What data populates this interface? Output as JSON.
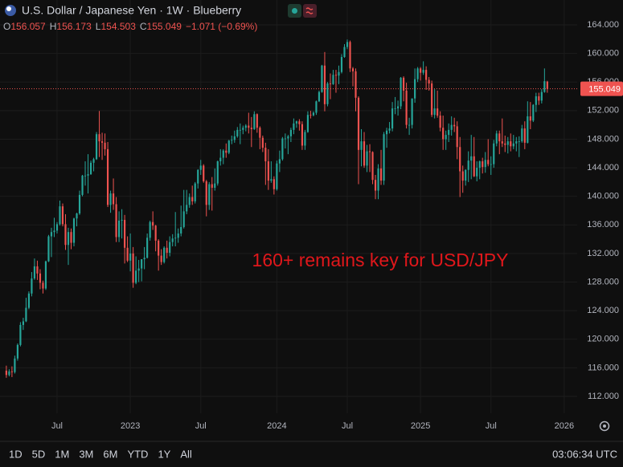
{
  "chart_data": {
    "type": "candlestick",
    "title": "U.S. Dollar / Japanese Yen · 1W · Blueberry",
    "legend_labels": [
      "O",
      "H",
      "L",
      "C"
    ],
    "legend_values": [
      "156.057",
      "156.173",
      "154.503",
      "155.049",
      "−1.071 (−0.69%)"
    ],
    "annotation": "160+ remains key for USD/JPY",
    "last_price": {
      "value": 155.049,
      "label": "155.049"
    },
    "up_color": "#26a69a",
    "down_color": "#ef5350",
    "annotation_color": "#e0171b",
    "grid": true,
    "ylim": [
      109.64,
      167.48
    ],
    "yticks": [
      {
        "value": 112,
        "label": "112.000"
      },
      {
        "value": 116,
        "label": "116.000"
      },
      {
        "value": 120,
        "label": "120.000"
      },
      {
        "value": 124,
        "label": "124.000"
      },
      {
        "value": 128,
        "label": "128.000"
      },
      {
        "value": 132,
        "label": "132.000"
      },
      {
        "value": 136,
        "label": "136.000"
      },
      {
        "value": 140,
        "label": "140.000"
      },
      {
        "value": 144,
        "label": "144.000"
      },
      {
        "value": 148,
        "label": "148.000"
      },
      {
        "value": 152,
        "label": "152.000"
      },
      {
        "value": 156,
        "label": "156.000"
      },
      {
        "value": 160,
        "label": "160.000"
      },
      {
        "value": 164,
        "label": "164.000"
      }
    ],
    "xlim": [
      -2.25,
      202.6
    ],
    "xticks": [
      {
        "value": 18,
        "label": "Jul"
      },
      {
        "value": 44,
        "label": "2023"
      },
      {
        "value": 69,
        "label": "Jul"
      },
      {
        "value": 96,
        "label": "2024"
      },
      {
        "value": 121,
        "label": "Jul"
      },
      {
        "value": 147,
        "label": "2025"
      },
      {
        "value": 172,
        "label": "Jul"
      },
      {
        "value": 198,
        "label": "2026"
      }
    ],
    "ohlc": [
      [
        115.6,
        116.3,
        114.6,
        115.0
      ],
      [
        115.0,
        115.8,
        114.8,
        115.5
      ],
      [
        115.5,
        116.2,
        114.7,
        115.4
      ],
      [
        115.4,
        117.7,
        115.2,
        117.3
      ],
      [
        117.3,
        119.4,
        117.0,
        119.2
      ],
      [
        119.2,
        122.4,
        119.0,
        122.0
      ],
      [
        122.0,
        123.0,
        121.3,
        122.5
      ],
      [
        122.5,
        125.8,
        122.4,
        124.4
      ],
      [
        124.4,
        126.7,
        124.2,
        126.4
      ],
      [
        126.4,
        129.4,
        126.0,
        128.5
      ],
      [
        128.5,
        131.3,
        128.3,
        130.2
      ],
      [
        130.2,
        131.0,
        128.3,
        129.2
      ],
      [
        129.2,
        129.8,
        127.0,
        127.9
      ],
      [
        127.9,
        128.2,
        126.4,
        127.1
      ],
      [
        127.1,
        131.0,
        126.9,
        130.9
      ],
      [
        130.9,
        134.6,
        130.8,
        134.4
      ],
      [
        134.4,
        135.6,
        131.5,
        135.0
      ],
      [
        135.0,
        137.0,
        134.3,
        135.2
      ],
      [
        135.2,
        136.4,
        134.8,
        136.1
      ],
      [
        136.1,
        139.4,
        135.9,
        138.6
      ],
      [
        138.6,
        139.0,
        135.8,
        136.1
      ],
      [
        136.1,
        137.5,
        132.5,
        133.2
      ],
      [
        133.2,
        135.6,
        130.4,
        135.0
      ],
      [
        135.0,
        135.5,
        132.6,
        133.5
      ],
      [
        133.5,
        137.0,
        133.0,
        136.9
      ],
      [
        136.9,
        137.7,
        135.8,
        137.6
      ],
      [
        137.6,
        140.8,
        137.4,
        140.2
      ],
      [
        140.2,
        143.0,
        140.0,
        142.9
      ],
      [
        142.9,
        144.9,
        141.5,
        142.9
      ],
      [
        142.9,
        145.9,
        140.4,
        143.1
      ],
      [
        143.1,
        145.0,
        143.0,
        144.7
      ],
      [
        144.7,
        145.4,
        143.5,
        145.2
      ],
      [
        145.2,
        149.0,
        145.1,
        148.7
      ],
      [
        148.7,
        151.95,
        145.5,
        147.7
      ],
      [
        147.7,
        148.9,
        145.1,
        147.5
      ],
      [
        147.5,
        148.8,
        145.7,
        146.6
      ],
      [
        146.6,
        147.6,
        138.5,
        138.8
      ],
      [
        138.8,
        140.8,
        137.7,
        140.4
      ],
      [
        140.4,
        142.5,
        138.1,
        138.9
      ],
      [
        138.9,
        139.9,
        133.6,
        134.3
      ],
      [
        134.3,
        137.9,
        133.6,
        136.6
      ],
      [
        136.6,
        138.2,
        134.1,
        136.7
      ],
      [
        136.7,
        137.4,
        130.6,
        132.8
      ],
      [
        132.8,
        134.4,
        130.8,
        131.0
      ],
      [
        131.0,
        134.8,
        129.5,
        132.0
      ],
      [
        132.0,
        132.9,
        127.2,
        127.9
      ],
      [
        127.9,
        131.6,
        127.7,
        129.6
      ],
      [
        129.6,
        131.1,
        128.0,
        129.9
      ],
      [
        129.9,
        131.2,
        128.1,
        131.2
      ],
      [
        131.2,
        132.9,
        129.8,
        131.4
      ],
      [
        131.4,
        134.8,
        131.3,
        134.2
      ],
      [
        134.2,
        136.6,
        133.8,
        136.4
      ],
      [
        136.4,
        137.9,
        135.3,
        135.9
      ],
      [
        135.9,
        136.0,
        132.3,
        133.8
      ],
      [
        133.8,
        134.0,
        129.6,
        131.7
      ],
      [
        131.7,
        132.6,
        130.4,
        130.8
      ],
      [
        130.8,
        133.0,
        130.6,
        132.8
      ],
      [
        132.8,
        133.8,
        131.3,
        132.1
      ],
      [
        132.1,
        134.4,
        131.6,
        133.6
      ],
      [
        133.6,
        134.7,
        133.0,
        134.1
      ],
      [
        134.1,
        137.8,
        133.0,
        134.2
      ],
      [
        134.2,
        135.5,
        133.5,
        134.8
      ],
      [
        134.8,
        138.7,
        134.4,
        135.7
      ],
      [
        135.7,
        140.9,
        135.5,
        137.9
      ],
      [
        137.9,
        140.9,
        137.5,
        138.8
      ],
      [
        138.8,
        140.4,
        138.4,
        139.9
      ],
      [
        139.9,
        141.5,
        138.8,
        139.3
      ],
      [
        139.3,
        142.0,
        139.0,
        141.8
      ],
      [
        141.8,
        143.8,
        141.1,
        143.7
      ],
      [
        143.7,
        145.1,
        143.0,
        144.3
      ],
      [
        144.3,
        144.5,
        141.9,
        142.1
      ],
      [
        142.1,
        142.3,
        137.2,
        138.8
      ],
      [
        138.8,
        142.0,
        138.1,
        141.7
      ],
      [
        141.7,
        142.7,
        138.0,
        141.2
      ],
      [
        141.2,
        143.9,
        140.8,
        141.8
      ],
      [
        141.8,
        145.0,
        141.5,
        144.9
      ],
      [
        144.9,
        146.6,
        144.3,
        145.4
      ],
      [
        145.4,
        146.6,
        144.5,
        146.4
      ],
      [
        146.4,
        147.4,
        145.4,
        146.1
      ],
      [
        146.1,
        147.9,
        145.9,
        147.8
      ],
      [
        147.8,
        148.5,
        147.3,
        147.9
      ],
      [
        147.9,
        149.2,
        147.5,
        148.4
      ],
      [
        148.4,
        149.7,
        148.2,
        149.3
      ],
      [
        149.3,
        150.2,
        147.3,
        149.3
      ],
      [
        149.3,
        149.9,
        148.7,
        149.6
      ],
      [
        149.6,
        150.1,
        149.1,
        149.9
      ],
      [
        149.9,
        151.7,
        148.8,
        149.6
      ],
      [
        149.6,
        151.1,
        146.9,
        149.4
      ],
      [
        149.4,
        151.9,
        149.3,
        151.5
      ],
      [
        151.5,
        151.6,
        148.9,
        149.6
      ],
      [
        149.6,
        149.8,
        146.6,
        148.2
      ],
      [
        148.2,
        148.5,
        146.2,
        146.8
      ],
      [
        146.8,
        147.5,
        141.6,
        144.9
      ],
      [
        144.9,
        146.6,
        140.9,
        142.2
      ],
      [
        142.2,
        144.9,
        141.9,
        142.4
      ],
      [
        142.4,
        142.8,
        140.25,
        141.0
      ],
      [
        141.0,
        145.0,
        140.8,
        144.6
      ],
      [
        144.6,
        146.4,
        143.4,
        145.2
      ],
      [
        145.2,
        148.3,
        145.0,
        148.1
      ],
      [
        148.1,
        148.8,
        146.7,
        148.1
      ],
      [
        148.1,
        148.6,
        145.9,
        148.4
      ],
      [
        148.4,
        149.6,
        147.6,
        149.3
      ],
      [
        149.3,
        150.9,
        148.7,
        150.2
      ],
      [
        150.2,
        150.6,
        149.6,
        150.5
      ],
      [
        150.5,
        150.8,
        149.2,
        150.1
      ],
      [
        150.1,
        150.5,
        146.5,
        147.1
      ],
      [
        147.1,
        149.3,
        146.5,
        149.0
      ],
      [
        149.0,
        151.9,
        148.9,
        151.4
      ],
      [
        151.4,
        151.97,
        150.9,
        151.35
      ],
      [
        151.35,
        151.9,
        151.2,
        151.7
      ],
      [
        151.7,
        153.4,
        151.4,
        153.3
      ],
      [
        153.3,
        154.8,
        153.2,
        154.6
      ],
      [
        154.6,
        158.4,
        154.5,
        158.3
      ],
      [
        158.3,
        160.2,
        151.9,
        152.9
      ],
      [
        152.9,
        156.0,
        152.6,
        155.8
      ],
      [
        155.8,
        157.2,
        153.6,
        155.7
      ],
      [
        155.7,
        157.7,
        155.6,
        157.0
      ],
      [
        157.0,
        157.7,
        154.5,
        156.9
      ],
      [
        156.9,
        158.3,
        155.7,
        157.4
      ],
      [
        157.4,
        159.9,
        157.2,
        159.5
      ],
      [
        159.5,
        161.3,
        159.4,
        160.9
      ],
      [
        160.9,
        161.95,
        160.6,
        161.6
      ],
      [
        161.6,
        161.8,
        157.4,
        157.9
      ],
      [
        157.9,
        158.1,
        155.4,
        157.5
      ],
      [
        157.5,
        157.9,
        151.9,
        153.8
      ],
      [
        153.8,
        154.0,
        141.7,
        146.5
      ],
      [
        146.5,
        149.4,
        144.2,
        147.7
      ],
      [
        147.7,
        149.0,
        144.0,
        144.3
      ],
      [
        144.3,
        147.2,
        143.4,
        146.3
      ],
      [
        146.3,
        147.3,
        143.4,
        146.2
      ],
      [
        146.2,
        146.3,
        141.7,
        142.3
      ],
      [
        142.3,
        143.0,
        139.6,
        140.8
      ],
      [
        140.8,
        144.5,
        139.6,
        143.9
      ],
      [
        143.9,
        146.5,
        141.6,
        142.2
      ],
      [
        142.2,
        149.0,
        141.6,
        148.7
      ],
      [
        148.7,
        149.6,
        146.8,
        149.2
      ],
      [
        149.2,
        150.4,
        148.8,
        149.5
      ],
      [
        149.5,
        153.2,
        149.1,
        152.3
      ],
      [
        152.3,
        153.9,
        151.5,
        152.3
      ],
      [
        152.3,
        153.4,
        151.3,
        152.6
      ],
      [
        152.6,
        156.7,
        152.2,
        156.6
      ],
      [
        156.6,
        156.8,
        153.3,
        154.8
      ],
      [
        154.8,
        155.9,
        149.5,
        150.0
      ],
      [
        150.0,
        151.0,
        148.6,
        150.0
      ],
      [
        150.0,
        153.7,
        149.5,
        153.7
      ],
      [
        153.7,
        157.9,
        153.1,
        156.4
      ],
      [
        156.4,
        158.1,
        156.0,
        157.9
      ],
      [
        157.9,
        158.1,
        156.2,
        157.3
      ],
      [
        157.3,
        158.9,
        157.0,
        157.7
      ],
      [
        157.7,
        158.2,
        154.9,
        156.3
      ],
      [
        156.3,
        156.7,
        154.8,
        155.8
      ],
      [
        155.8,
        156.2,
        151.1,
        151.4
      ],
      [
        151.4,
        155.0,
        150.9,
        152.3
      ],
      [
        152.3,
        154.8,
        151.0,
        151.3
      ],
      [
        151.3,
        151.9,
        149.1,
        149.6
      ],
      [
        149.6,
        151.3,
        146.5,
        148.0
      ],
      [
        148.0,
        149.2,
        146.5,
        148.6
      ],
      [
        148.6,
        150.2,
        147.6,
        149.3
      ],
      [
        149.3,
        151.2,
        148.5,
        150.0
      ],
      [
        150.0,
        151.0,
        149.0,
        149.8
      ],
      [
        149.8,
        150.5,
        145.2,
        146.9
      ],
      [
        146.9,
        148.3,
        139.9,
        143.5
      ],
      [
        143.5,
        144.3,
        140.5,
        142.2
      ],
      [
        142.2,
        143.8,
        141.5,
        143.7
      ],
      [
        143.7,
        146.3,
        142.0,
        145.0
      ],
      [
        145.0,
        148.6,
        142.4,
        145.6
      ],
      [
        145.6,
        148.3,
        142.7,
        142.8
      ],
      [
        142.8,
        144.9,
        142.1,
        144.0
      ],
      [
        144.0,
        145.0,
        142.4,
        144.9
      ],
      [
        144.9,
        145.4,
        143.2,
        144.1
      ],
      [
        144.1,
        146.2,
        143.3,
        145.1
      ],
      [
        145.1,
        148.0,
        144.2,
        144.5
      ],
      [
        144.5,
        145.6,
        143.0,
        144.5
      ],
      [
        144.5,
        147.9,
        144.0,
        147.4
      ],
      [
        147.4,
        149.2,
        147.0,
        148.8
      ],
      [
        148.8,
        149.2,
        145.9,
        147.7
      ],
      [
        147.7,
        150.9,
        146.9,
        147.4
      ],
      [
        147.4,
        148.5,
        146.2,
        147.2
      ],
      [
        147.2,
        148.3,
        146.0,
        147.7
      ],
      [
        147.7,
        148.8,
        146.3,
        147.0
      ],
      [
        147.0,
        148.6,
        146.6,
        147.4
      ],
      [
        147.4,
        148.3,
        146.3,
        147.7
      ],
      [
        147.7,
        148.4,
        145.5,
        147.7
      ],
      [
        147.7,
        150.0,
        147.5,
        149.5
      ],
      [
        149.5,
        150.5,
        146.6,
        147.5
      ],
      [
        147.5,
        153.3,
        147.4,
        151.2
      ],
      [
        151.2,
        153.2,
        149.4,
        150.6
      ],
      [
        150.6,
        152.9,
        150.4,
        152.8
      ],
      [
        152.8,
        154.5,
        151.8,
        154.0
      ],
      [
        154.0,
        154.5,
        152.8,
        153.4
      ],
      [
        153.4,
        155.0,
        153.0,
        154.6
      ],
      [
        154.6,
        157.9,
        154.5,
        156.12
      ],
      [
        156.057,
        156.173,
        154.503,
        155.049
      ]
    ],
    "range_buttons": [
      "1D",
      "5D",
      "1M",
      "3M",
      "6M",
      "YTD",
      "1Y",
      "All"
    ],
    "clock": "03:06:34 UTC"
  }
}
